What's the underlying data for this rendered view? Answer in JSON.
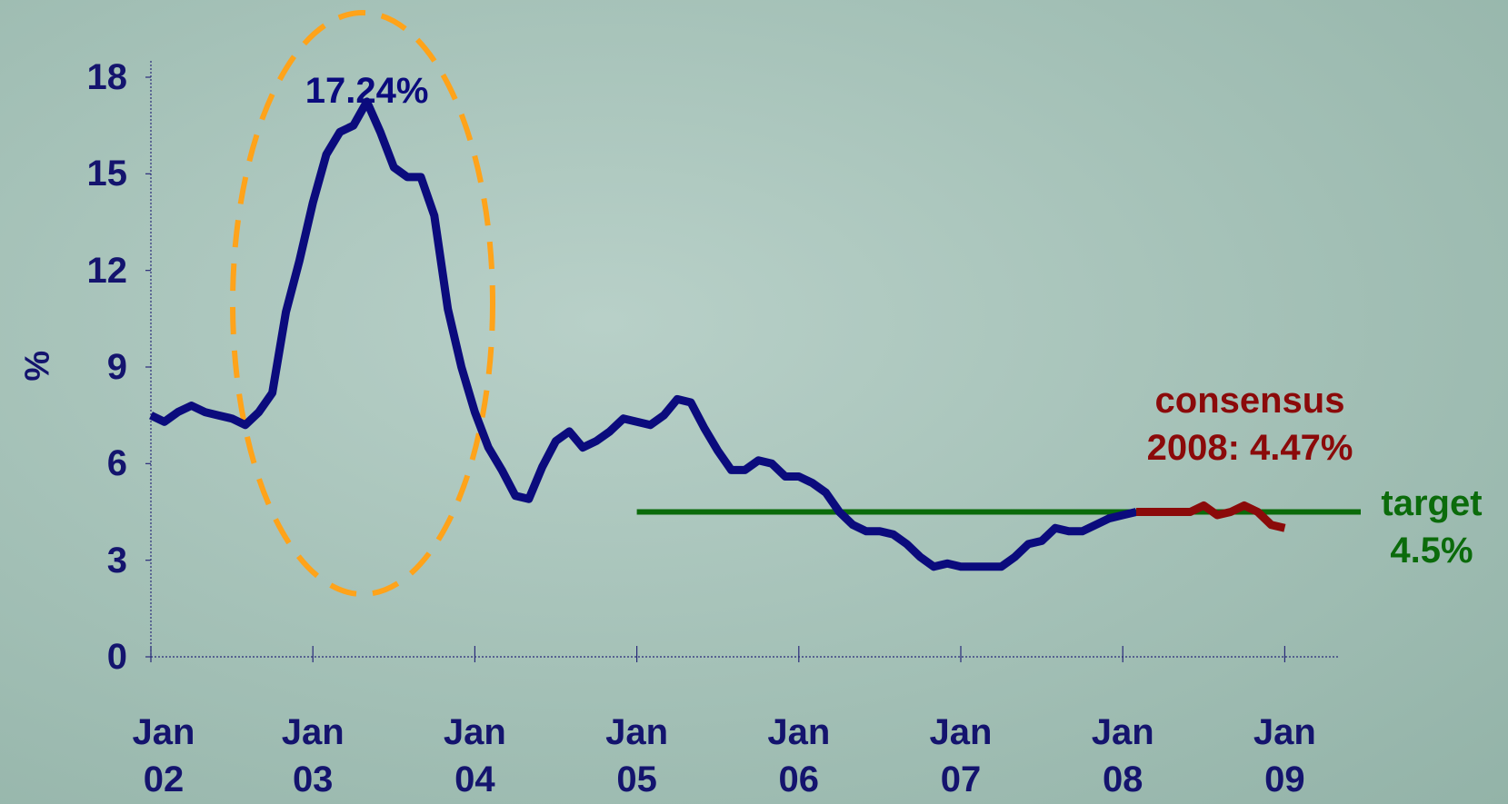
{
  "chart_data": {
    "type": "line",
    "ylabel": "%",
    "categories": [
      "Jan 02",
      null,
      null,
      null,
      null,
      null,
      null,
      null,
      null,
      null,
      null,
      null,
      "Jan 03",
      null,
      null,
      null,
      null,
      null,
      null,
      null,
      null,
      null,
      null,
      null,
      "Jan 04",
      null,
      null,
      null,
      null,
      null,
      null,
      null,
      null,
      null,
      null,
      null,
      "Jan 05",
      null,
      null,
      null,
      null,
      null,
      null,
      null,
      null,
      null,
      null,
      null,
      "Jan 06",
      null,
      null,
      null,
      null,
      null,
      null,
      null,
      null,
      null,
      null,
      null,
      "Jan 07",
      null,
      null,
      null,
      null,
      null,
      null,
      null,
      null,
      null,
      null,
      null,
      "Jan 08",
      null,
      null,
      null,
      null,
      null,
      null,
      null,
      null,
      null,
      null,
      null,
      "Jan 09"
    ],
    "series": [
      {
        "color": "#0b0b7d",
        "values": [
          7.5,
          7.3,
          7.6,
          7.8,
          7.6,
          7.5,
          7.4,
          7.2,
          7.6,
          8.2,
          10.7,
          12.3,
          14.1,
          15.6,
          16.3,
          16.5,
          17.24,
          16.3,
          15.2,
          14.9,
          14.9,
          13.7,
          10.8,
          9.0,
          7.6,
          6.5,
          5.8,
          5.0,
          4.9,
          5.9,
          6.7,
          7.0,
          6.5,
          6.7,
          7.0,
          7.4,
          7.3,
          7.2,
          7.5,
          8.0,
          7.9,
          7.1,
          6.4,
          5.8,
          5.8,
          6.1,
          6.0,
          5.6,
          5.6,
          5.4,
          5.1,
          4.5,
          4.1,
          3.9,
          3.9,
          3.8,
          3.5,
          3.1,
          2.8,
          2.9,
          2.8,
          2.8,
          2.8,
          2.8,
          3.1,
          3.5,
          3.6,
          4.0,
          3.9,
          3.9,
          4.1,
          4.3,
          4.4,
          4.5,
          null,
          null,
          null,
          null,
          null,
          null,
          null,
          null,
          null,
          null,
          null
        ]
      },
      {
        "color": "#8b0a0a",
        "values": [
          null,
          null,
          null,
          null,
          null,
          null,
          null,
          null,
          null,
          null,
          null,
          null,
          null,
          null,
          null,
          null,
          null,
          null,
          null,
          null,
          null,
          null,
          null,
          null,
          null,
          null,
          null,
          null,
          null,
          null,
          null,
          null,
          null,
          null,
          null,
          null,
          null,
          null,
          null,
          null,
          null,
          null,
          null,
          null,
          null,
          null,
          null,
          null,
          null,
          null,
          null,
          null,
          null,
          null,
          null,
          null,
          null,
          null,
          null,
          null,
          null,
          null,
          null,
          null,
          null,
          null,
          null,
          null,
          null,
          null,
          null,
          null,
          null,
          4.5,
          4.5,
          4.5,
          4.5,
          4.5,
          4.7,
          4.4,
          4.5,
          4.7,
          4.5,
          4.1,
          4.0
        ]
      }
    ],
    "target": {
      "value": 4.5,
      "from": "Jan 05",
      "color": "#0b6b0b",
      "label": "target 4.5%"
    },
    "annotations": [
      {
        "text": "17.24%",
        "at": "16",
        "color": "#0b0b7d"
      },
      {
        "text": "consensus 2008: 4.47%",
        "color": "#8b0a0a"
      }
    ],
    "ylim": [
      0,
      18
    ],
    "yticks": [
      0,
      3,
      6,
      9,
      12,
      15,
      18
    ],
    "grid": false
  }
}
